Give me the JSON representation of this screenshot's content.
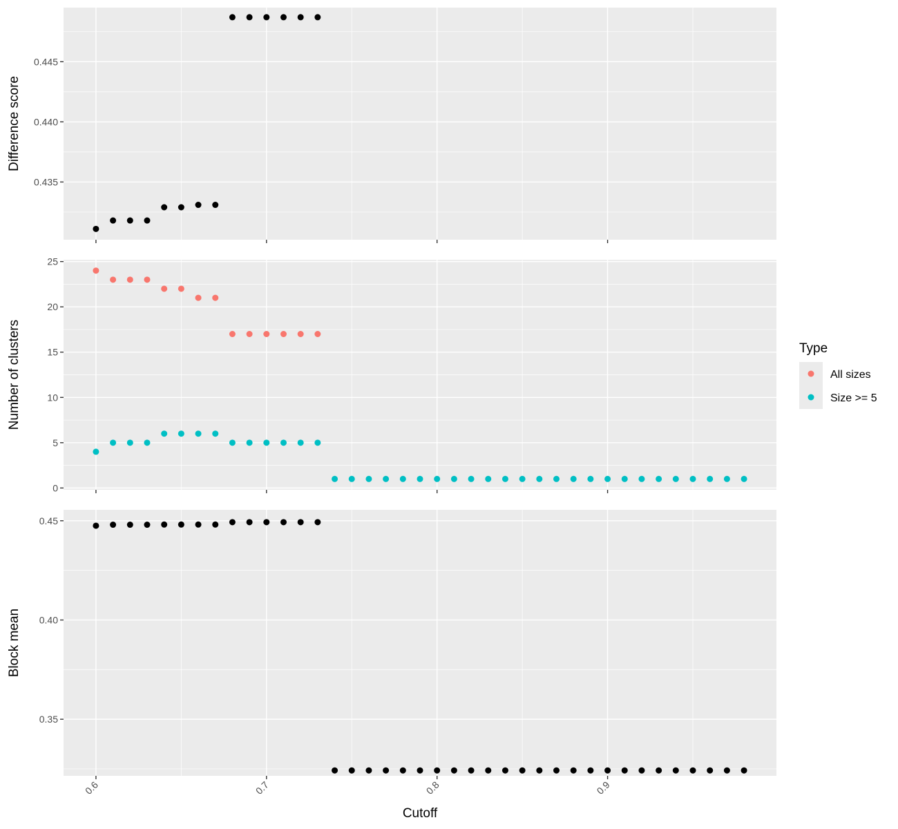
{
  "chart_data": {
    "type": "scatter",
    "x_label": "Cutoff",
    "x_ticks": [
      "0.6",
      "0.7",
      "0.8",
      "0.9"
    ],
    "x_tick_values": [
      0.6,
      0.7,
      0.8,
      0.9
    ],
    "x_range": [
      0.581,
      0.999
    ],
    "legend": {
      "title": "Type",
      "items": [
        {
          "label": "All sizes",
          "color": "#F8766D"
        },
        {
          "label": "Size >= 5",
          "color": "#00BFC4"
        }
      ]
    },
    "panels": [
      {
        "ylabel": "Difference score",
        "y_range": [
          0.4302,
          0.4495
        ],
        "y_ticks": [
          "0.435",
          "0.440",
          "0.445"
        ],
        "y_tick_values": [
          0.435,
          0.44,
          0.445
        ],
        "series": [
          {
            "color": "#000000",
            "x": [
              0.6,
              0.61,
              0.62,
              0.63,
              0.64,
              0.65,
              0.66,
              0.67,
              0.68,
              0.69,
              0.7,
              0.71,
              0.72,
              0.73
            ],
            "y": [
              0.4311,
              0.4318,
              0.4318,
              0.4318,
              0.4329,
              0.4329,
              0.4331,
              0.4331,
              0.4487,
              0.4487,
              0.4487,
              0.4487,
              0.4487,
              0.4487
            ]
          }
        ]
      },
      {
        "ylabel": "Number of clusters",
        "y_range": [
          -0.2,
          25.2
        ],
        "y_ticks": [
          "0",
          "5",
          "10",
          "15",
          "20",
          "25"
        ],
        "y_tick_values": [
          0,
          5,
          10,
          15,
          20,
          25
        ],
        "series": [
          {
            "name": "All sizes",
            "color": "#F8766D",
            "x": [
              0.6,
              0.61,
              0.62,
              0.63,
              0.64,
              0.65,
              0.66,
              0.67,
              0.68,
              0.69,
              0.7,
              0.71,
              0.72,
              0.73
            ],
            "y": [
              24,
              23,
              23,
              23,
              22,
              22,
              21,
              21,
              17,
              17,
              17,
              17,
              17,
              17
            ]
          },
          {
            "name": "Size >= 5",
            "color": "#00BFC4",
            "x": [
              0.6,
              0.61,
              0.62,
              0.63,
              0.64,
              0.65,
              0.66,
              0.67,
              0.68,
              0.69,
              0.7,
              0.71,
              0.72,
              0.73,
              0.74,
              0.75,
              0.76,
              0.77,
              0.78,
              0.79,
              0.8,
              0.81,
              0.82,
              0.83,
              0.84,
              0.85,
              0.86,
              0.87,
              0.88,
              0.89,
              0.9,
              0.91,
              0.92,
              0.93,
              0.94,
              0.95,
              0.96,
              0.97,
              0.98
            ],
            "y": [
              4,
              5,
              5,
              5,
              6,
              6,
              6,
              6,
              5,
              5,
              5,
              5,
              5,
              5,
              1,
              1,
              1,
              1,
              1,
              1,
              1,
              1,
              1,
              1,
              1,
              1,
              1,
              1,
              1,
              1,
              1,
              1,
              1,
              1,
              1,
              1,
              1,
              1,
              1
            ]
          }
        ]
      },
      {
        "ylabel": "Block mean",
        "y_range": [
          0.3215,
          0.4555
        ],
        "y_ticks": [
          "0.35",
          "0.40",
          "0.45"
        ],
        "y_tick_values": [
          0.35,
          0.4,
          0.45
        ],
        "series": [
          {
            "color": "#000000",
            "x": [
              0.6,
              0.61,
              0.62,
              0.63,
              0.64,
              0.65,
              0.66,
              0.67,
              0.68,
              0.69,
              0.7,
              0.71,
              0.72,
              0.73,
              0.74,
              0.75,
              0.76,
              0.77,
              0.78,
              0.79,
              0.8,
              0.81,
              0.82,
              0.83,
              0.84,
              0.85,
              0.86,
              0.87,
              0.88,
              0.89,
              0.9,
              0.91,
              0.92,
              0.93,
              0.94,
              0.95,
              0.96,
              0.97,
              0.98
            ],
            "y": [
              0.4475,
              0.448,
              0.448,
              0.448,
              0.4481,
              0.4481,
              0.4481,
              0.4481,
              0.4493,
              0.4493,
              0.4493,
              0.4493,
              0.4493,
              0.4493,
              0.3242,
              0.3242,
              0.3242,
              0.3242,
              0.3242,
              0.3242,
              0.3242,
              0.3242,
              0.3242,
              0.3242,
              0.3242,
              0.3242,
              0.3242,
              0.3242,
              0.3242,
              0.3242,
              0.3242,
              0.3242,
              0.3242,
              0.3242,
              0.3242,
              0.3242,
              0.3242,
              0.3242,
              0.3242
            ]
          }
        ]
      }
    ]
  }
}
